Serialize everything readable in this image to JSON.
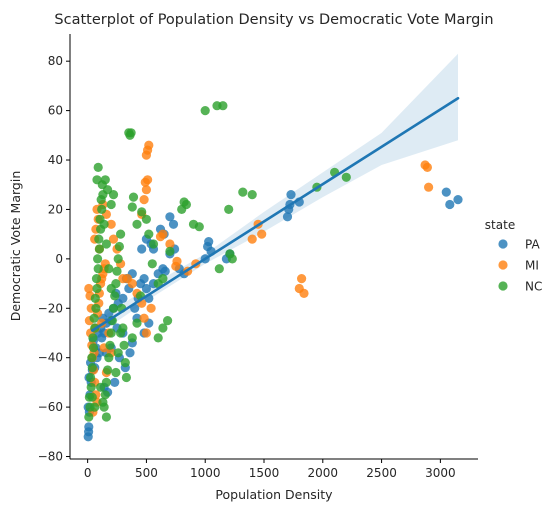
{
  "chart_data": {
    "type": "scatter",
    "title": "Scatterplot of Population Density vs Democratic Vote Margin",
    "xlabel": "Population Density",
    "ylabel": "Democratic Vote Margin",
    "xlim": [
      -150,
      3320
    ],
    "ylim": [
      -81,
      91
    ],
    "xticks": [
      0,
      500,
      1000,
      1500,
      2000,
      2500,
      3000
    ],
    "yticks": [
      -80,
      -60,
      -40,
      -20,
      0,
      20,
      40,
      60,
      80
    ],
    "grid": false,
    "legend": {
      "title": "state",
      "placement": "right"
    },
    "series": [
      {
        "name": "PA",
        "color": "#1f77b4",
        "points": [
          [
            5,
            -72
          ],
          [
            8,
            -70
          ],
          [
            10,
            -68
          ],
          [
            15,
            -62
          ],
          [
            5,
            -60
          ],
          [
            20,
            -55
          ],
          [
            30,
            -50
          ],
          [
            12,
            -48
          ],
          [
            40,
            -45
          ],
          [
            60,
            -44
          ],
          [
            25,
            -42
          ],
          [
            80,
            -40
          ],
          [
            100,
            -38
          ],
          [
            70,
            -36
          ],
          [
            50,
            -33
          ],
          [
            120,
            -32
          ],
          [
            90,
            -30
          ],
          [
            140,
            -30
          ],
          [
            110,
            -28
          ],
          [
            160,
            -26
          ],
          [
            200,
            -25
          ],
          [
            130,
            -24
          ],
          [
            180,
            -22
          ],
          [
            220,
            -20
          ],
          [
            260,
            -18
          ],
          [
            300,
            -16
          ],
          [
            240,
            -14
          ],
          [
            350,
            -12
          ],
          [
            330,
            -8
          ],
          [
            380,
            -6
          ],
          [
            200,
            -36
          ],
          [
            250,
            -28
          ],
          [
            160,
            -38
          ],
          [
            300,
            -30
          ],
          [
            400,
            -20
          ],
          [
            450,
            -10
          ],
          [
            480,
            -8
          ],
          [
            500,
            -12
          ],
          [
            520,
            -16
          ],
          [
            560,
            -10
          ],
          [
            520,
            -26
          ],
          [
            480,
            -30
          ],
          [
            380,
            -34
          ],
          [
            420,
            -24
          ],
          [
            600,
            -6
          ],
          [
            640,
            -4
          ],
          [
            700,
            2
          ],
          [
            740,
            4
          ],
          [
            780,
            -4
          ],
          [
            820,
            -6
          ],
          [
            460,
            4
          ],
          [
            500,
            8
          ],
          [
            540,
            6
          ],
          [
            560,
            4
          ],
          [
            620,
            12
          ],
          [
            650,
            10
          ],
          [
            700,
            17
          ],
          [
            730,
            14
          ],
          [
            1000,
            0
          ],
          [
            1020,
            5
          ],
          [
            1030,
            7
          ],
          [
            1050,
            3
          ],
          [
            1700,
            17
          ],
          [
            1710,
            20
          ],
          [
            1720,
            22
          ],
          [
            1730,
            26
          ],
          [
            1800,
            23
          ],
          [
            3050,
            27
          ],
          [
            3080,
            22
          ],
          [
            3150,
            24
          ],
          [
            1210,
            2
          ],
          [
            1180,
            0
          ],
          [
            660,
            -5
          ],
          [
            430,
            -16
          ],
          [
            230,
            -50
          ],
          [
            140,
            -52
          ],
          [
            170,
            -54
          ],
          [
            320,
            -44
          ],
          [
            270,
            -40
          ],
          [
            360,
            -38
          ]
        ]
      },
      {
        "name": "MI",
        "color": "#ff7f0e",
        "points": [
          [
            10,
            -12
          ],
          [
            20,
            -15
          ],
          [
            30,
            -20
          ],
          [
            15,
            -25
          ],
          [
            25,
            -30
          ],
          [
            35,
            -35
          ],
          [
            40,
            -40
          ],
          [
            50,
            -45
          ],
          [
            60,
            -50
          ],
          [
            70,
            -55
          ],
          [
            80,
            -58
          ],
          [
            45,
            -62
          ],
          [
            55,
            -38
          ],
          [
            65,
            -28
          ],
          [
            85,
            -22
          ],
          [
            95,
            -18
          ],
          [
            100,
            -14
          ],
          [
            110,
            -10
          ],
          [
            120,
            -8
          ],
          [
            130,
            -6
          ],
          [
            140,
            -4
          ],
          [
            150,
            -2
          ],
          [
            100,
            4
          ],
          [
            60,
            8
          ],
          [
            70,
            12
          ],
          [
            90,
            16
          ],
          [
            80,
            20
          ],
          [
            130,
            22
          ],
          [
            160,
            18
          ],
          [
            200,
            14
          ],
          [
            220,
            8
          ],
          [
            250,
            4
          ],
          [
            280,
            -2
          ],
          [
            300,
            -8
          ],
          [
            340,
            -8
          ],
          [
            380,
            -10
          ],
          [
            420,
            -14
          ],
          [
            460,
            -18
          ],
          [
            480,
            -24
          ],
          [
            500,
            -30
          ],
          [
            540,
            -20
          ],
          [
            500,
            42
          ],
          [
            510,
            44
          ],
          [
            520,
            46
          ],
          [
            490,
            31
          ],
          [
            500,
            28
          ],
          [
            510,
            32
          ],
          [
            480,
            24
          ],
          [
            460,
            18
          ],
          [
            620,
            9
          ],
          [
            640,
            10
          ],
          [
            700,
            6
          ],
          [
            750,
            -3
          ],
          [
            760,
            -1
          ],
          [
            850,
            -5
          ],
          [
            920,
            -2
          ],
          [
            1400,
            8
          ],
          [
            1450,
            14
          ],
          [
            1480,
            10
          ],
          [
            1800,
            -12
          ],
          [
            1820,
            -8
          ],
          [
            1840,
            -14
          ],
          [
            2870,
            38
          ],
          [
            2890,
            37
          ],
          [
            2900,
            29
          ],
          [
            120,
            -26
          ],
          [
            180,
            -30
          ],
          [
            140,
            -36
          ],
          [
            200,
            -38
          ],
          [
            160,
            -46
          ]
        ]
      },
      {
        "name": "NC",
        "color": "#2ca02c",
        "points": [
          [
            10,
            -64
          ],
          [
            20,
            -60
          ],
          [
            15,
            -56
          ],
          [
            30,
            -52
          ],
          [
            25,
            -48
          ],
          [
            40,
            -44
          ],
          [
            35,
            -40
          ],
          [
            50,
            -36
          ],
          [
            45,
            -32
          ],
          [
            60,
            -28
          ],
          [
            55,
            -24
          ],
          [
            70,
            -20
          ],
          [
            65,
            -16
          ],
          [
            80,
            -12
          ],
          [
            75,
            -8
          ],
          [
            90,
            -4
          ],
          [
            85,
            0
          ],
          [
            100,
            4
          ],
          [
            95,
            8
          ],
          [
            110,
            12
          ],
          [
            105,
            16
          ],
          [
            120,
            20
          ],
          [
            115,
            24
          ],
          [
            130,
            26
          ],
          [
            125,
            30
          ],
          [
            80,
            32
          ],
          [
            90,
            37
          ],
          [
            140,
            -60
          ],
          [
            150,
            -55
          ],
          [
            160,
            -50
          ],
          [
            170,
            -45
          ],
          [
            180,
            -40
          ],
          [
            190,
            -35
          ],
          [
            200,
            -30
          ],
          [
            210,
            -25
          ],
          [
            220,
            -20
          ],
          [
            230,
            -15
          ],
          [
            240,
            -10
          ],
          [
            250,
            -5
          ],
          [
            260,
            0
          ],
          [
            270,
            5
          ],
          [
            280,
            10
          ],
          [
            290,
            -20
          ],
          [
            300,
            -28
          ],
          [
            310,
            -35
          ],
          [
            320,
            -42
          ],
          [
            330,
            -48
          ],
          [
            240,
            -46
          ],
          [
            260,
            -38
          ],
          [
            280,
            -30
          ],
          [
            200,
            -12
          ],
          [
            180,
            -4
          ],
          [
            160,
            6
          ],
          [
            140,
            14
          ],
          [
            200,
            22
          ],
          [
            220,
            26
          ],
          [
            170,
            28
          ],
          [
            150,
            32
          ],
          [
            350,
            51
          ],
          [
            370,
            51
          ],
          [
            360,
            50
          ],
          [
            380,
            21
          ],
          [
            390,
            25
          ],
          [
            420,
            14
          ],
          [
            460,
            19
          ],
          [
            500,
            16
          ],
          [
            520,
            10
          ],
          [
            560,
            6
          ],
          [
            600,
            -10
          ],
          [
            640,
            -8
          ],
          [
            450,
            -15
          ],
          [
            420,
            -26
          ],
          [
            380,
            -32
          ],
          [
            600,
            -32
          ],
          [
            640,
            -28
          ],
          [
            680,
            -25
          ],
          [
            550,
            -2
          ],
          [
            700,
            3
          ],
          [
            800,
            20
          ],
          [
            820,
            23
          ],
          [
            840,
            22
          ],
          [
            900,
            14
          ],
          [
            950,
            13
          ],
          [
            1000,
            60
          ],
          [
            1100,
            62
          ],
          [
            1150,
            62
          ],
          [
            1120,
            -4
          ],
          [
            1200,
            20
          ],
          [
            1210,
            2
          ],
          [
            1230,
            0
          ],
          [
            1320,
            27
          ],
          [
            1400,
            26
          ],
          [
            1950,
            29
          ],
          [
            2100,
            35
          ],
          [
            2200,
            33
          ],
          [
            160,
            -64
          ],
          [
            130,
            -58
          ],
          [
            110,
            -52
          ],
          [
            60,
            -60
          ],
          [
            40,
            -56
          ]
        ]
      }
    ],
    "regression": {
      "start": [
        40,
        -29
      ],
      "end": [
        3150,
        65
      ],
      "ci_upper": [
        [
          40,
          -26
        ],
        [
          600,
          -9
        ],
        [
          1000,
          2
        ],
        [
          1500,
          19
        ],
        [
          2000,
          35
        ],
        [
          2500,
          51
        ],
        [
          3150,
          83
        ]
      ],
      "ci_lower": [
        [
          40,
          -32
        ],
        [
          600,
          -14
        ],
        [
          1000,
          -2
        ],
        [
          1500,
          11
        ],
        [
          2000,
          25
        ],
        [
          2500,
          38
        ],
        [
          3150,
          48
        ]
      ]
    }
  }
}
